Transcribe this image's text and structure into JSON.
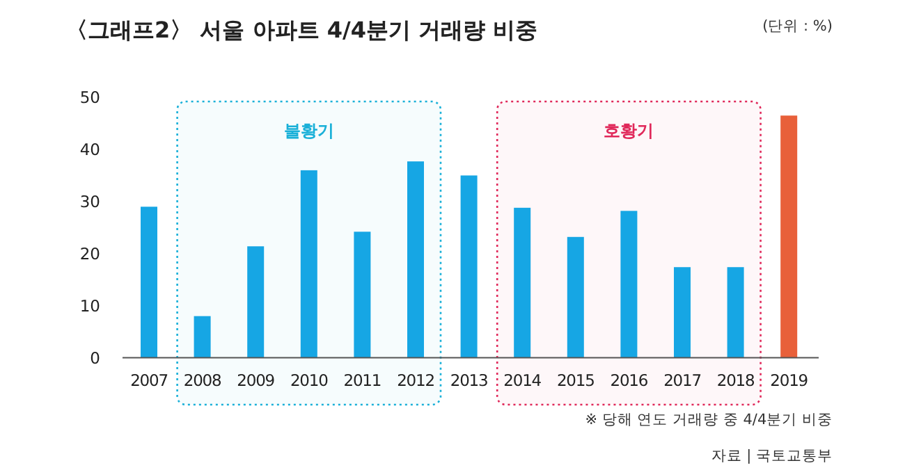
{
  "chart_data": {
    "type": "bar",
    "title": "〈그래프2〉 서울 아파트 4/4분기 거래량 비중",
    "categories": [
      "2007",
      "2008",
      "2009",
      "2010",
      "2011",
      "2012",
      "2013",
      "2014",
      "2015",
      "2016",
      "2017",
      "2018",
      "2019"
    ],
    "values": [
      29,
      8,
      21.4,
      36,
      24.2,
      37.7,
      35,
      28.8,
      23.2,
      28.2,
      17.4,
      17.4,
      46.5
    ],
    "colors": [
      "#16a6e4",
      "#16a6e4",
      "#16a6e4",
      "#16a6e4",
      "#16a6e4",
      "#16a6e4",
      "#16a6e4",
      "#16a6e4",
      "#16a6e4",
      "#16a6e4",
      "#16a6e4",
      "#16a6e4",
      "#e8603a"
    ],
    "ylim": [
      0,
      50
    ],
    "yticks": [
      0,
      10,
      20,
      30,
      40,
      50
    ],
    "bands": [
      {
        "axis": "x",
        "from": "2008",
        "to": "2012",
        "label": "불황기",
        "color": "#1ab0d8"
      },
      {
        "axis": "x",
        "from": "2014",
        "to": "2018",
        "label": "호황기",
        "color": "#e0285a"
      }
    ],
    "annotations": [
      "(단위 : %)",
      "※ 당해 연도 거래량 중 4/4분기 비중",
      "자료 | 국토교통부"
    ],
    "grid": false
  }
}
